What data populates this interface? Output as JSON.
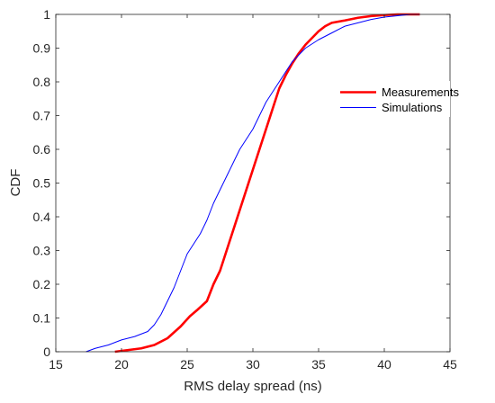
{
  "chart_data": {
    "type": "line",
    "title": "",
    "xlabel": "RMS delay spread (ns)",
    "ylabel": "CDF",
    "xlim": [
      15,
      45
    ],
    "ylim": [
      0,
      1
    ],
    "xticks": [
      "15",
      "20",
      "25",
      "30",
      "35",
      "40",
      "45"
    ],
    "yticks": [
      "0",
      "0.1",
      "0.2",
      "0.3",
      "0.4",
      "0.5",
      "0.6",
      "0.7",
      "0.8",
      "0.9",
      "1"
    ],
    "grid": false,
    "legend_position": "top-right",
    "series": [
      {
        "name": "Measurements",
        "color": "#ff0000",
        "x": [
          19.5,
          20.5,
          21.5,
          22.5,
          23.5,
          24.5,
          25.2,
          25.8,
          26.5,
          27.0,
          27.5,
          28.0,
          28.5,
          29.0,
          29.5,
          30.0,
          30.5,
          31.0,
          31.5,
          32.0,
          32.5,
          33.0,
          33.5,
          34.0,
          34.5,
          35.0,
          35.5,
          36.0,
          37.0,
          38.0,
          39.0,
          40.0,
          41.0,
          42.0,
          42.7
        ],
        "y": [
          0.0,
          0.005,
          0.01,
          0.02,
          0.04,
          0.075,
          0.105,
          0.125,
          0.15,
          0.2,
          0.24,
          0.3,
          0.36,
          0.42,
          0.48,
          0.54,
          0.6,
          0.66,
          0.72,
          0.78,
          0.82,
          0.855,
          0.885,
          0.91,
          0.93,
          0.95,
          0.965,
          0.975,
          0.982,
          0.99,
          0.995,
          0.998,
          1.0,
          1.0,
          1.0
        ]
      },
      {
        "name": "Simulations",
        "color": "#0000ff",
        "x": [
          17.3,
          18.0,
          19.0,
          20.0,
          21.0,
          22.0,
          22.5,
          23.0,
          23.5,
          24.0,
          24.5,
          25.0,
          25.5,
          26.0,
          26.5,
          27.0,
          27.5,
          28.0,
          28.5,
          29.0,
          29.5,
          30.0,
          30.5,
          31.0,
          31.5,
          32.0,
          32.5,
          33.0,
          33.5,
          34.0,
          35.0,
          36.0,
          37.0,
          38.0,
          39.0,
          40.0,
          41.0,
          42.0,
          42.7
        ],
        "y": [
          0.0,
          0.01,
          0.02,
          0.035,
          0.045,
          0.06,
          0.08,
          0.11,
          0.15,
          0.19,
          0.24,
          0.29,
          0.32,
          0.35,
          0.39,
          0.44,
          0.48,
          0.52,
          0.56,
          0.6,
          0.63,
          0.66,
          0.7,
          0.74,
          0.77,
          0.8,
          0.83,
          0.86,
          0.88,
          0.9,
          0.925,
          0.945,
          0.965,
          0.975,
          0.985,
          0.992,
          0.996,
          1.0,
          1.0
        ]
      }
    ]
  }
}
